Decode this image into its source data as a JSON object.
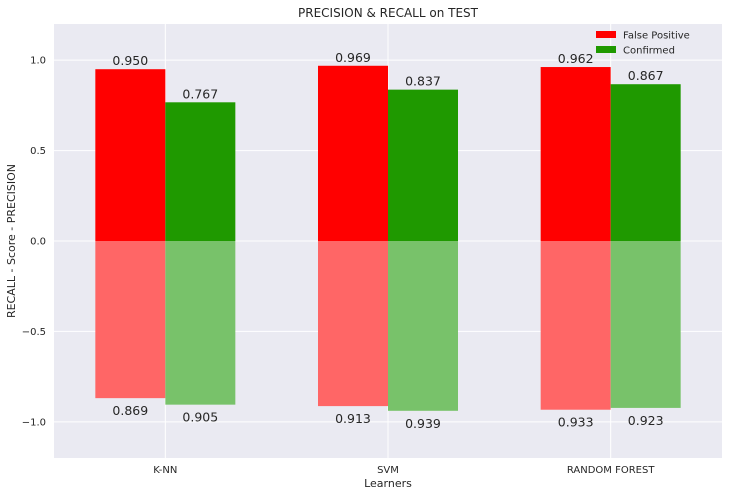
{
  "chart_data": {
    "type": "bar",
    "title": "PRECISION & RECALL on TEST",
    "xlabel": "Learners",
    "ylabel": "RECALL - Score - PRECISION",
    "categories": [
      "K-NN",
      "SVM",
      "RANDOM FOREST"
    ],
    "ylim": [
      -1.2,
      1.2
    ],
    "yticks": [
      1.0,
      0.5,
      0.0,
      -0.5,
      -1.0
    ],
    "ytick_labels": [
      "1.0",
      "0.5",
      "0.0",
      "−0.5",
      "−1.0"
    ],
    "grid": true,
    "legend_position": "top-right",
    "series": [
      {
        "name": "False Positive",
        "color": "#ff0000",
        "recall_color": "#ff6666",
        "precision": [
          0.95,
          0.969,
          0.962
        ],
        "precision_labels": [
          "0.950",
          "0.969",
          "0.962"
        ],
        "recall": [
          -0.869,
          -0.913,
          -0.933
        ],
        "recall_labels": [
          "0.869",
          "0.913",
          "0.933"
        ]
      },
      {
        "name": "Confirmed",
        "color": "#1f9900",
        "recall_color": "#78c26a",
        "precision": [
          0.767,
          0.837,
          0.867
        ],
        "precision_labels": [
          "0.767",
          "0.837",
          "0.867"
        ],
        "recall": [
          -0.905,
          -0.939,
          -0.923
        ],
        "recall_labels": [
          "0.905",
          "0.939",
          "0.923"
        ]
      }
    ]
  }
}
